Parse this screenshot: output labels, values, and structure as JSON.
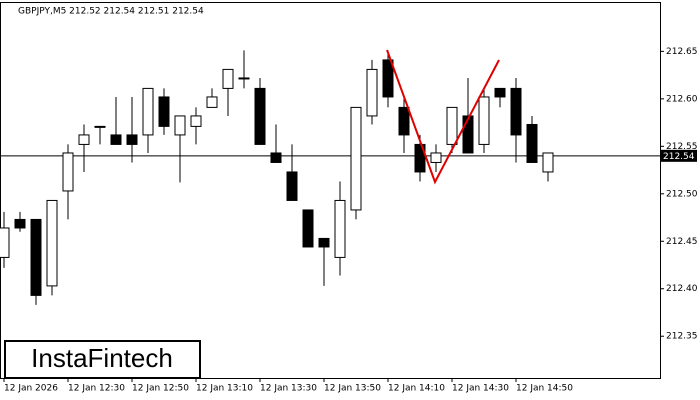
{
  "chart_data": {
    "type": "candlestick",
    "title": "GBPJPY,M5  212.52 212.54 212.51 212.54",
    "categories": [
      "12 Jan 2026",
      null,
      null,
      null,
      "12 Jan 12:30",
      null,
      null,
      null,
      "12 Jan 12:50",
      null,
      null,
      null,
      "12 Jan 13:10",
      null,
      null,
      null,
      "12 Jan 13:30",
      null,
      null,
      null,
      "12 Jan 13:50",
      null,
      null,
      null,
      "12 Jan 14:10",
      null,
      null,
      null,
      "12 Jan 14:30",
      null,
      null,
      null,
      "12 Jan 14:50",
      null,
      null
    ],
    "open": [
      212.433,
      212.473,
      212.473,
      212.403,
      212.503,
      212.552,
      212.571,
      212.562,
      212.562,
      212.562,
      212.602,
      212.562,
      212.571,
      212.591,
      212.611,
      212.622,
      212.611,
      212.543,
      212.523,
      212.483,
      212.453,
      212.433,
      212.483,
      212.582,
      212.641,
      212.591,
      212.552,
      212.533,
      212.552,
      212.582,
      212.552,
      212.611,
      212.611,
      212.573,
      212.523
    ],
    "high": [
      212.481,
      212.481,
      212.473,
      212.493,
      212.552,
      212.573,
      212.571,
      212.602,
      212.602,
      212.611,
      212.611,
      212.582,
      212.591,
      212.611,
      212.631,
      212.651,
      212.622,
      212.573,
      212.552,
      212.483,
      212.453,
      212.513,
      212.591,
      212.641,
      212.651,
      212.602,
      212.562,
      212.552,
      212.591,
      212.622,
      212.611,
      212.611,
      212.622,
      212.582,
      212.543
    ],
    "low": [
      212.422,
      212.46,
      212.383,
      212.393,
      212.473,
      212.523,
      212.552,
      212.552,
      212.533,
      212.543,
      212.562,
      212.512,
      212.552,
      212.591,
      212.582,
      212.611,
      212.552,
      212.533,
      212.493,
      212.444,
      212.403,
      212.414,
      212.473,
      212.573,
      212.591,
      212.543,
      212.513,
      212.523,
      212.543,
      212.543,
      212.543,
      212.591,
      212.533,
      212.533,
      212.513
    ],
    "close": [
      212.464,
      212.464,
      212.393,
      212.493,
      212.543,
      212.562,
      212.571,
      212.552,
      212.552,
      212.611,
      212.571,
      212.582,
      212.582,
      212.602,
      212.631,
      212.622,
      212.552,
      212.533,
      212.493,
      212.444,
      212.444,
      212.493,
      212.591,
      212.631,
      212.602,
      212.562,
      212.523,
      212.543,
      212.591,
      212.543,
      212.602,
      212.602,
      212.562,
      212.533,
      212.543
    ],
    "up_color": "#ffffff",
    "down_color": "#000000",
    "edge_color": "#000000",
    "ylim": [
      212.306,
      212.702
    ],
    "yticks": [
      212.35,
      {
        "value": 212.4,
        "label": "212.40"
      },
      212.45,
      {
        "value": 212.5,
        "label": "212.50"
      },
      212.55,
      {
        "value": 212.6,
        "label": "212.60"
      },
      212.65
    ],
    "current_price": 212.54,
    "watermark": "InstaFintech"
  }
}
